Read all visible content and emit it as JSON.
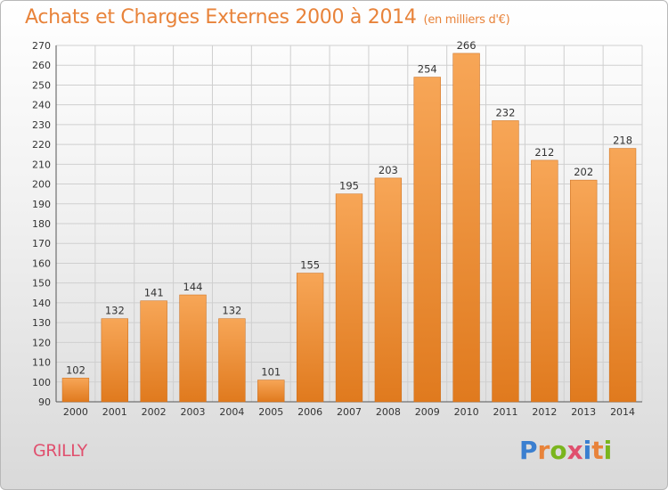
{
  "title": "Achats et Charges Externes 2000 à 2014",
  "title_unit": "(en milliers d'€)",
  "commune": "GRILLY",
  "logo": {
    "text": "Proxiti",
    "letters": [
      {
        "ch": "P",
        "color": "#3a7fd0"
      },
      {
        "ch": "r",
        "color": "#e8833a"
      },
      {
        "ch": "o",
        "color": "#7ab51d"
      },
      {
        "ch": "x",
        "color": "#e0506e"
      },
      {
        "ch": "i",
        "color": "#3a7fd0"
      },
      {
        "ch": "t",
        "color": "#e8833a"
      },
      {
        "ch": "i",
        "color": "#7ab51d"
      }
    ]
  },
  "colors": {
    "bar_top": "#f7a657",
    "bar_bottom": "#e07a1e",
    "bar_stroke": "#c96a18",
    "grid": "#cfcfcf",
    "title": "#e8833a",
    "commune": "#e0506e"
  },
  "chart_data": {
    "type": "bar",
    "categories": [
      "2000",
      "2001",
      "2002",
      "2003",
      "2004",
      "2005",
      "2006",
      "2007",
      "2008",
      "2009",
      "2010",
      "2011",
      "2012",
      "2013",
      "2014"
    ],
    "values": [
      102,
      132,
      141,
      144,
      132,
      101,
      155,
      195,
      203,
      254,
      266,
      232,
      212,
      202,
      218
    ],
    "value_labels": [
      "102",
      "132",
      "141",
      "144",
      "132",
      "101",
      "155",
      "195",
      "203",
      "254",
      "266",
      "232",
      "212",
      "202",
      "218"
    ],
    "title": "Achats et Charges Externes 2000 à 2014",
    "xlabel": "",
    "ylabel": "",
    "ylim": [
      90,
      270
    ],
    "yticks": [
      90,
      100,
      110,
      120,
      130,
      140,
      150,
      160,
      170,
      180,
      190,
      200,
      210,
      220,
      230,
      240,
      250,
      260,
      270
    ],
    "grid": true,
    "legend": "none"
  }
}
